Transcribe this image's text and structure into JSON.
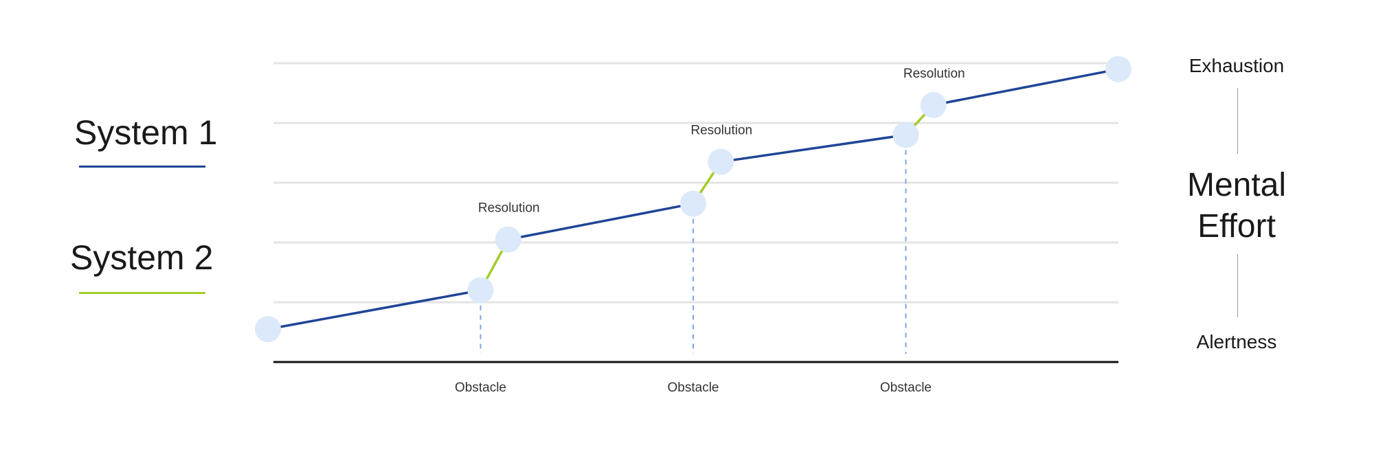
{
  "legend": [
    {
      "label": "System 1",
      "color": "#1f4596"
    },
    {
      "label": "System 2",
      "color": "#a3cc2b"
    }
  ],
  "side_axis": {
    "top": "Exhaustion",
    "title_line1": "Mental",
    "title_line2": "Effort",
    "bottom": "Alertness"
  },
  "colors": {
    "gridline": "#e3e3e3",
    "baseline": "#111111",
    "node": "#dce9fa",
    "dash": "#7da3e0"
  },
  "chart_data": {
    "type": "line",
    "x": [
      0,
      1,
      1.13,
      2,
      2.13,
      3,
      3.13,
      4
    ],
    "y": [
      0.55,
      1.2,
      2.05,
      2.65,
      3.35,
      3.8,
      4.3,
      4.9
    ],
    "segments": [
      {
        "name": "System 1",
        "from": 0,
        "to": 1
      },
      {
        "name": "System 2",
        "from": 1,
        "to": 2
      },
      {
        "name": "System 1",
        "from": 2,
        "to": 3
      },
      {
        "name": "System 2",
        "from": 3,
        "to": 4
      },
      {
        "name": "System 1",
        "from": 4,
        "to": 5
      },
      {
        "name": "System 2",
        "from": 5,
        "to": 6
      },
      {
        "name": "System 1",
        "from": 6,
        "to": 7
      }
    ],
    "obstacles": [
      {
        "x": 1,
        "label": "Obstacle"
      },
      {
        "x": 2,
        "label": "Obstacle"
      },
      {
        "x": 3,
        "label": "Obstacle"
      }
    ],
    "resolutions": [
      {
        "x": 1.13,
        "label": "Resolution"
      },
      {
        "x": 2.13,
        "label": "Resolution"
      },
      {
        "x": 3.13,
        "label": "Resolution"
      }
    ],
    "gridlines_y": [
      1,
      2,
      3,
      4,
      5
    ],
    "xlim": [
      0,
      4
    ],
    "ylim": [
      0,
      5
    ],
    "grid": true
  }
}
